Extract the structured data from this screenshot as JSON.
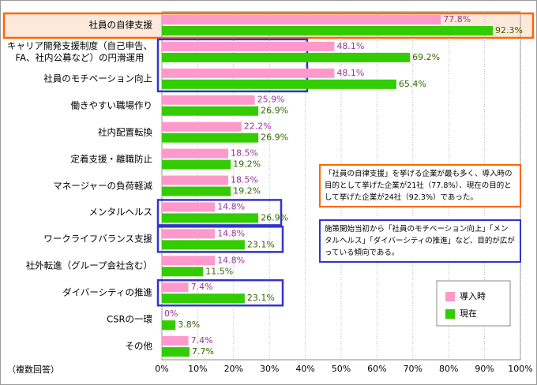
{
  "chart_data": {
    "type": "hbar",
    "categories": [
      "社員の自律支援",
      "キャリア開発支援制度（自己申告、\nFA、社内公募など）の円滑運用",
      "社員のモチベーション向上",
      "働きやすい職場作り",
      "社内配置転換",
      "定着支援・離職防止",
      "マネージャーの負荷軽減",
      "メンタルヘルス",
      "ワークライフバランス支援",
      "社外転進（グループ会社含む）",
      "ダイバーシティの推進",
      "CSRの一環",
      "その他"
    ],
    "series": [
      {
        "name": "導入時",
        "color": "#ff99cc",
        "label_color": "#993399",
        "values": [
          77.8,
          48.1,
          48.1,
          25.9,
          22.2,
          18.5,
          18.5,
          14.8,
          14.8,
          14.8,
          7.4,
          0,
          7.4
        ],
        "value_labels": [
          "77.8%",
          "48.1%",
          "48.1%",
          "25.9%",
          "22.2%",
          "18.5%",
          "18.5%",
          "14.8%",
          "14.8%",
          "14.8%",
          "7.4%",
          "0%",
          "7.4%"
        ]
      },
      {
        "name": "現在",
        "color": "#33cc00",
        "label_color": "#336600",
        "values": [
          92.3,
          69.2,
          65.4,
          26.9,
          26.9,
          19.2,
          19.2,
          26.9,
          23.1,
          11.5,
          23.1,
          3.8,
          7.7
        ],
        "value_labels": [
          "92.3%",
          "69.2%",
          "65.4%",
          "26.9%",
          "26.9%",
          "19.2%",
          "19.2%",
          "26.9%",
          "23.1%",
          "11.5%",
          "23.1%",
          "3.8%",
          "7.7%"
        ]
      }
    ],
    "xlim": [
      0,
      100
    ],
    "xticks": [
      {
        "value": 0,
        "label": "0%"
      },
      {
        "value": 10,
        "label": "10%"
      },
      {
        "value": 20,
        "label": "20%"
      },
      {
        "value": 30,
        "label": "30%"
      },
      {
        "value": 40,
        "label": "40%"
      },
      {
        "value": 50,
        "label": "50%"
      },
      {
        "value": 60,
        "label": "60%"
      },
      {
        "value": 70,
        "label": "70%"
      },
      {
        "value": 80,
        "label": "80%"
      },
      {
        "value": 90,
        "label": "90%"
      },
      {
        "value": 100,
        "label": "100%"
      }
    ],
    "grid": true,
    "footnote": "（複数回答）",
    "annotations": [
      "「社員の自律支援」を挙げる企業が最も多く、導入時の目的として挙げた企業が21社（77.8%）、現在の目的として挙げた企業が24社（92.3%）であった。",
      "施策開始当初から「社員のモチベーション向上」「メンタルヘルス」「ダイバーシティの推進」など、目的が広がっている傾向である。"
    ]
  }
}
